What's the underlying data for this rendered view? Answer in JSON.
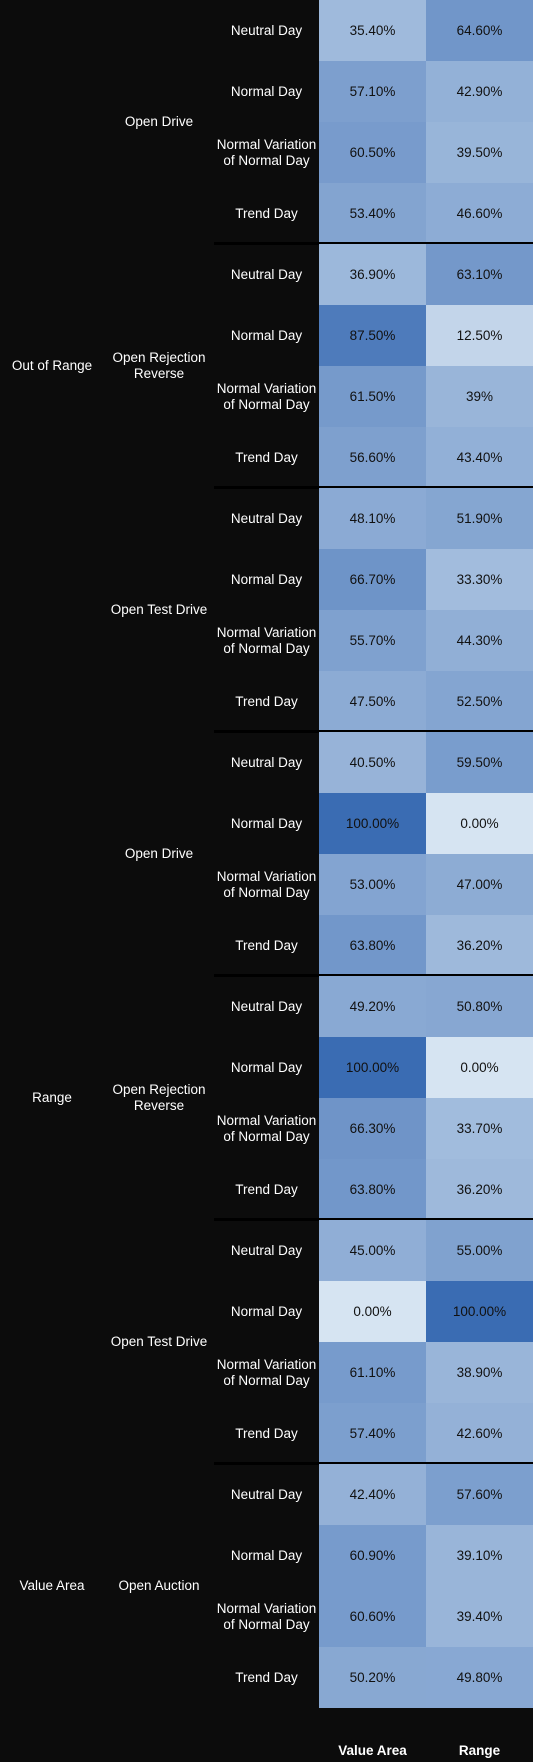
{
  "chart_data": {
    "type": "heatmap",
    "columns": [
      "Value Area",
      "Range"
    ],
    "colorscale": {
      "low": "#d6e4f2",
      "high": "#3a6cb3"
    },
    "groups": [
      {
        "level1": "Out of Range",
        "subgroups": [
          {
            "level2": "Open Drive",
            "rows": [
              {
                "label": "Neutral Day",
                "values": [
                  35.4,
                  64.6
                ],
                "text": [
                  "35.40%",
                  "64.60%"
                ]
              },
              {
                "label": "Normal Day",
                "values": [
                  57.1,
                  42.9
                ],
                "text": [
                  "57.10%",
                  "42.90%"
                ]
              },
              {
                "label": "Normal Variation\nof Normal Day",
                "values": [
                  60.5,
                  39.5
                ],
                "text": [
                  "60.50%",
                  "39.50%"
                ]
              },
              {
                "label": "Trend Day",
                "values": [
                  53.4,
                  46.6
                ],
                "text": [
                  "53.40%",
                  "46.60%"
                ]
              }
            ]
          },
          {
            "level2": "Open Rejection\nReverse",
            "rows": [
              {
                "label": "Neutral Day",
                "values": [
                  36.9,
                  63.1
                ],
                "text": [
                  "36.90%",
                  "63.10%"
                ]
              },
              {
                "label": "Normal Day",
                "values": [
                  87.5,
                  12.5
                ],
                "text": [
                  "87.50%",
                  "12.50%"
                ]
              },
              {
                "label": "Normal Variation\nof Normal Day",
                "values": [
                  61.5,
                  39
                ],
                "text": [
                  "61.50%",
                  "39%"
                ]
              },
              {
                "label": "Trend Day",
                "values": [
                  56.6,
                  43.4
                ],
                "text": [
                  "56.60%",
                  "43.40%"
                ]
              }
            ]
          },
          {
            "level2": "Open Test Drive",
            "rows": [
              {
                "label": "Neutral Day",
                "values": [
                  48.1,
                  51.9
                ],
                "text": [
                  "48.10%",
                  "51.90%"
                ]
              },
              {
                "label": "Normal Day",
                "values": [
                  66.7,
                  33.3
                ],
                "text": [
                  "66.70%",
                  "33.30%"
                ]
              },
              {
                "label": "Normal Variation\nof Normal Day",
                "values": [
                  55.7,
                  44.3
                ],
                "text": [
                  "55.70%",
                  "44.30%"
                ]
              },
              {
                "label": "Trend Day",
                "values": [
                  47.5,
                  52.5
                ],
                "text": [
                  "47.50%",
                  "52.50%"
                ]
              }
            ]
          }
        ]
      },
      {
        "level1": "Range",
        "subgroups": [
          {
            "level2": "Open Drive",
            "rows": [
              {
                "label": "Neutral Day",
                "values": [
                  40.5,
                  59.5
                ],
                "text": [
                  "40.50%",
                  "59.50%"
                ]
              },
              {
                "label": "Normal Day",
                "values": [
                  100,
                  0
                ],
                "text": [
                  "100.00%",
                  "0.00%"
                ]
              },
              {
                "label": "Normal Variation\nof Normal Day",
                "values": [
                  53,
                  47
                ],
                "text": [
                  "53.00%",
                  "47.00%"
                ]
              },
              {
                "label": "Trend Day",
                "values": [
                  63.8,
                  36.2
                ],
                "text": [
                  "63.80%",
                  "36.20%"
                ]
              }
            ]
          },
          {
            "level2": "Open Rejection\nReverse",
            "rows": [
              {
                "label": "Neutral Day",
                "values": [
                  49.2,
                  50.8
                ],
                "text": [
                  "49.20%",
                  "50.80%"
                ]
              },
              {
                "label": "Normal Day",
                "values": [
                  100,
                  0
                ],
                "text": [
                  "100.00%",
                  "0.00%"
                ]
              },
              {
                "label": "Normal Variation\nof Normal Day",
                "values": [
                  66.3,
                  33.7
                ],
                "text": [
                  "66.30%",
                  "33.70%"
                ]
              },
              {
                "label": "Trend Day",
                "values": [
                  63.8,
                  36.2
                ],
                "text": [
                  "63.80%",
                  "36.20%"
                ]
              }
            ]
          },
          {
            "level2": "Open Test Drive",
            "rows": [
              {
                "label": "Neutral Day",
                "values": [
                  45,
                  55
                ],
                "text": [
                  "45.00%",
                  "55.00%"
                ]
              },
              {
                "label": "Normal Day",
                "values": [
                  0,
                  100
                ],
                "text": [
                  "0.00%",
                  "100.00%"
                ]
              },
              {
                "label": "Normal Variation\nof Normal Day",
                "values": [
                  61.1,
                  38.9
                ],
                "text": [
                  "61.10%",
                  "38.90%"
                ]
              },
              {
                "label": "Trend Day",
                "values": [
                  57.4,
                  42.6
                ],
                "text": [
                  "57.40%",
                  "42.60%"
                ]
              }
            ]
          }
        ]
      },
      {
        "level1": "Value Area",
        "subgroups": [
          {
            "level2": "Open Auction",
            "rows": [
              {
                "label": "Neutral Day",
                "values": [
                  42.4,
                  57.6
                ],
                "text": [
                  "42.40%",
                  "57.60%"
                ]
              },
              {
                "label": "Normal Day",
                "values": [
                  60.9,
                  39.1
                ],
                "text": [
                  "60.90%",
                  "39.10%"
                ]
              },
              {
                "label": "Normal Variation\nof Normal Day",
                "values": [
                  60.6,
                  39.4
                ],
                "text": [
                  "60.60%",
                  "39.40%"
                ]
              },
              {
                "label": "Trend Day",
                "values": [
                  50.2,
                  49.8
                ],
                "text": [
                  "50.20%",
                  "49.80%"
                ]
              }
            ]
          }
        ]
      }
    ]
  }
}
